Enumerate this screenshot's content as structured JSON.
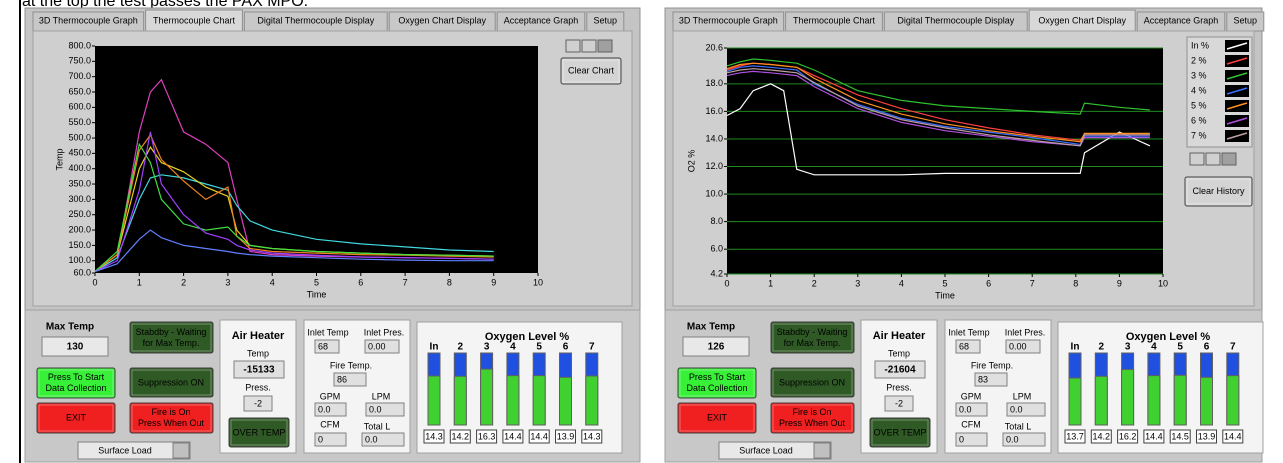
{
  "caption": "at the top the test passes the PAX MPO.",
  "panels": [
    {
      "tabs": [
        "3D Thermocouple Graph",
        "Thermocouple Chart",
        "Digital Thermocouple Display",
        "Oxygen Chart Display",
        "Acceptance Graph",
        "Setup"
      ],
      "active_tab": 1,
      "chart": {
        "type": "line",
        "y_label": "Temp",
        "x_label": "Time",
        "grid": false,
        "xlim": [
          0,
          10
        ],
        "xticks": [
          0,
          1,
          2,
          3,
          4,
          5,
          6,
          7,
          8,
          9,
          10
        ],
        "ylim": [
          60,
          800
        ],
        "yticks": [
          {
            "value": 60,
            "label": "60.0"
          },
          {
            "value": 100,
            "label": "100.0"
          },
          {
            "value": 150,
            "label": "150.0"
          },
          {
            "value": 200,
            "label": "200.0"
          },
          {
            "value": 250,
            "label": "250.0"
          },
          {
            "value": 300,
            "label": "300.0"
          },
          {
            "value": 350,
            "label": "350.0"
          },
          {
            "value": 400,
            "label": "400.0"
          },
          {
            "value": 450,
            "label": "450.0"
          },
          {
            "value": 500,
            "label": "500.0"
          },
          {
            "value": 550,
            "label": "550.0"
          },
          {
            "value": 600,
            "label": "600.0"
          },
          {
            "value": 650,
            "label": "650.0"
          },
          {
            "value": 700,
            "label": "700.0"
          },
          {
            "value": 750,
            "label": "750.0"
          },
          {
            "value": 800,
            "label": "800.0"
          }
        ],
        "x": [
          0,
          0.5,
          1,
          1.25,
          1.5,
          2,
          2.5,
          3,
          3.2,
          3.5,
          4,
          5,
          6,
          7,
          8,
          9
        ],
        "series": [
          {
            "color": "#e040c0",
            "values": [
              65,
              110,
              520,
              650,
              690,
              520,
              480,
              420,
              300,
              130,
              120,
              115,
              112,
              110,
              108,
              105
            ]
          },
          {
            "color": "#40d8e0",
            "values": [
              65,
              110,
              300,
              370,
              380,
              370,
              350,
              330,
              280,
              230,
              200,
              170,
              155,
              145,
              135,
              130
            ]
          },
          {
            "color": "#e8d020",
            "values": [
              65,
              120,
              400,
              470,
              420,
              390,
              340,
              310,
              200,
              150,
              140,
              130,
              125,
              120,
              118,
              115
            ]
          },
          {
            "color": "#f08020",
            "values": [
              65,
              120,
              460,
              510,
              430,
              360,
              300,
              340,
              180,
              140,
              130,
              125,
              120,
              118,
              115,
              112
            ]
          },
          {
            "color": "#40e040",
            "values": [
              65,
              130,
              480,
              420,
              300,
              220,
              200,
              210,
              180,
              150,
              140,
              130,
              125,
              120,
              118,
              115
            ]
          },
          {
            "color": "#a040ff",
            "values": [
              65,
              100,
              330,
              520,
              350,
              250,
              190,
              170,
              150,
              135,
              125,
              118,
              112,
              110,
              108,
              105
            ]
          },
          {
            "color": "#6080ff",
            "values": [
              65,
              90,
              170,
              200,
              175,
              150,
              140,
              130,
              125,
              120,
              115,
              110,
              105,
              102,
              100,
              100
            ]
          }
        ]
      },
      "clear_button": "Clear Chart",
      "max_temp": {
        "label": "Max Temp",
        "value": 130
      },
      "start_button": [
        "Press To Start",
        "Data Collection"
      ],
      "exit_button": "EXIT",
      "standby_button": [
        "Stabdby - Waiting",
        "for Max Temp."
      ],
      "suppression_button": "Suppression ON",
      "fire_button": [
        "Fire is On",
        "Press When Out"
      ],
      "dropdown": "Surface Load",
      "air_heater": {
        "title": "Air Heater",
        "temp_label": "Temp",
        "temp": -15133,
        "press_label": "Press.",
        "press": -2,
        "over_temp": "OVER TEMP"
      },
      "flow": {
        "inlet_temp_label": "Inlet Temp",
        "inlet_temp": 68,
        "inlet_pres_label": "Inlet Pres.",
        "inlet_pres": "0.00",
        "fire_temp_label": "Fire Temp.",
        "fire_temp": 86,
        "gpm_label": "GPM",
        "gpm": "0.0",
        "lpm_label": "LPM",
        "lpm": "0.0",
        "cfm_label": "CFM",
        "cfm": 0,
        "total_label": "Total L",
        "total": "0.0"
      },
      "oxygen": {
        "title": "Oxygen Level %",
        "ylim": [
          0,
          21
        ],
        "labels": [
          "In",
          "2",
          "3",
          "4",
          "5",
          "6",
          "7"
        ],
        "values": [
          14.3,
          14.2,
          16.3,
          14.4,
          14.4,
          13.9,
          14.3
        ]
      }
    },
    {
      "tabs": [
        "3D Thermocouple Graph",
        "Thermocouple Chart",
        "Digital Thermocouple Display",
        "Oxygen Chart Display",
        "Acceptance Graph",
        "Setup"
      ],
      "active_tab": 3,
      "chart": {
        "type": "line",
        "y_label": "O2 %",
        "x_label": "Time",
        "grid": true,
        "xlim": [
          0,
          10
        ],
        "xticks": [
          0,
          1,
          2,
          3,
          4,
          5,
          6,
          7,
          8,
          9,
          10
        ],
        "ylim": [
          4.2,
          20.6
        ],
        "yticks": [
          4.2,
          {
            "value": 6,
            "label": "6.0"
          },
          {
            "value": 8,
            "label": "8.0"
          },
          {
            "value": 10,
            "label": "10.0"
          },
          {
            "value": 12,
            "label": "12.0"
          },
          {
            "value": 14,
            "label": "14.0"
          },
          {
            "value": 16,
            "label": "16.0"
          },
          {
            "value": 18,
            "label": "18.0"
          },
          20.6
        ],
        "x": [
          0,
          0.3,
          0.6,
          1,
          1.3,
          1.6,
          2,
          3,
          4,
          5,
          6,
          7,
          8.1,
          8.2,
          9,
          9.7
        ],
        "series": [
          {
            "name": "In %",
            "color": "#ffffff",
            "values": [
              15.7,
              16.2,
              17.5,
              18.0,
              17.5,
              11.8,
              11.4,
              11.4,
              11.4,
              11.5,
              11.5,
              11.5,
              11.5,
              13.0,
              14.5,
              13.5
            ]
          },
          {
            "name": "2 %",
            "color": "#ff4040",
            "values": [
              19.0,
              19.3,
              19.5,
              19.4,
              19.3,
              19.2,
              18.6,
              17.2,
              16.2,
              15.4,
              14.8,
              14.3,
              13.9,
              14.3,
              14.3,
              14.3
            ]
          },
          {
            "name": "3 %",
            "color": "#30c030",
            "values": [
              19.3,
              19.6,
              19.8,
              19.7,
              19.6,
              19.5,
              19.0,
              17.5,
              16.8,
              16.4,
              16.2,
              16.0,
              15.8,
              16.6,
              16.3,
              16.1
            ]
          },
          {
            "name": "4 %",
            "color": "#4070ff",
            "values": [
              18.9,
              19.2,
              19.3,
              19.2,
              19.1,
              19.0,
              18.0,
              16.5,
              15.5,
              14.9,
              14.5,
              14.1,
              13.6,
              14.2,
              14.2,
              14.2
            ]
          },
          {
            "name": "5 %",
            "color": "#ff9020",
            "values": [
              19.1,
              19.4,
              19.5,
              19.4,
              19.3,
              19.2,
              18.4,
              16.8,
              15.8,
              15.1,
              14.6,
              14.2,
              13.8,
              14.4,
              14.4,
              14.4
            ]
          },
          {
            "name": "6 %",
            "color": "#b050e0",
            "values": [
              18.6,
              18.8,
              18.9,
              18.8,
              18.7,
              18.6,
              17.8,
              16.2,
              15.2,
              14.6,
              14.2,
              13.8,
              13.5,
              14.1,
              14.1,
              14.1
            ]
          },
          {
            "name": "7 %",
            "color": "#c0a0a0",
            "values": [
              18.8,
              19.0,
              19.1,
              19.0,
              18.9,
              18.8,
              18.1,
              16.4,
              15.4,
              14.8,
              14.3,
              13.9,
              13.5,
              14.3,
              14.3,
              14.3
            ]
          }
        ]
      },
      "clear_button": "Clear History",
      "max_temp": {
        "label": "Max Temp",
        "value": 126
      },
      "start_button": [
        "Press To Start",
        "Data Collection"
      ],
      "exit_button": "EXIT",
      "standby_button": [
        "Stabdby - Waiting",
        "for Max Temp."
      ],
      "suppression_button": "Suppression ON",
      "fire_button": [
        "Fire is On",
        "Press When Out"
      ],
      "dropdown": "Surface Load",
      "air_heater": {
        "title": "Air Heater",
        "temp_label": "Temp",
        "temp": -21604,
        "press_label": "Press.",
        "press": -2,
        "over_temp": "OVER TEMP"
      },
      "flow": {
        "inlet_temp_label": "Inlet Temp",
        "inlet_temp": 68,
        "inlet_pres_label": "Inlet Pres.",
        "inlet_pres": "0.00",
        "fire_temp_label": "Fire Temp.",
        "fire_temp": 83,
        "gpm_label": "GPM",
        "gpm": "0.0",
        "lpm_label": "LPM",
        "lpm": "0.0",
        "cfm_label": "CFM",
        "cfm": 0,
        "total_label": "Total L",
        "total": "0.0"
      },
      "oxygen": {
        "title": "Oxygen Level %",
        "ylim": [
          0,
          21
        ],
        "labels": [
          "In",
          "2",
          "3",
          "4",
          "5",
          "6",
          "7"
        ],
        "values": [
          13.7,
          14.2,
          16.2,
          14.4,
          14.5,
          13.9,
          14.4
        ]
      }
    }
  ]
}
